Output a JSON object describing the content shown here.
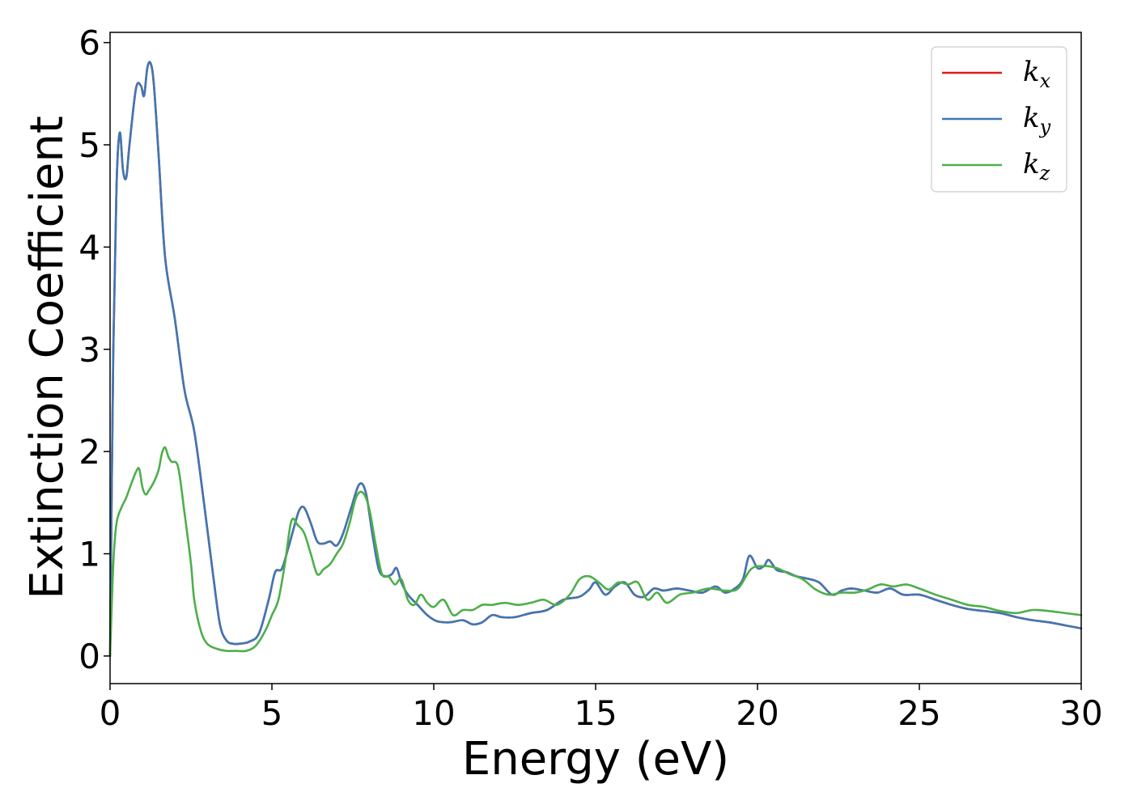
{
  "chart_data": {
    "type": "line",
    "title": "",
    "xlabel": "Energy (eV)",
    "ylabel": "Extinction Coefficient",
    "xlim": [
      0,
      30
    ],
    "ylim": [
      -0.27,
      6.1
    ],
    "xticks": [
      0,
      5,
      10,
      15,
      20,
      25,
      30
    ],
    "yticks": [
      0,
      1,
      2,
      3,
      4,
      5,
      6
    ],
    "grid": false,
    "legend_position": "top-right",
    "series": [
      {
        "name": "kx",
        "legend_base": "k",
        "legend_sub": "x",
        "color": "#e41a1c",
        "x": [
          0,
          0.1,
          0.2,
          0.3,
          0.4,
          0.5,
          0.6,
          0.8,
          0.95,
          1.05,
          1.15,
          1.25,
          1.35,
          1.5,
          1.7,
          2.0,
          2.3,
          2.6,
          2.9,
          3.2,
          3.4,
          3.6,
          3.8,
          4.0,
          4.3,
          4.6,
          4.9,
          5.1,
          5.3,
          5.5,
          5.7,
          5.85,
          6.0,
          6.2,
          6.4,
          6.6,
          6.8,
          7.0,
          7.2,
          7.45,
          7.7,
          7.9,
          8.1,
          8.3,
          8.5,
          8.7,
          8.85,
          9.0,
          9.2,
          9.5,
          9.8,
          10.1,
          10.5,
          10.9,
          11.2,
          11.5,
          11.8,
          12.1,
          12.5,
          13.0,
          13.5,
          14.0,
          14.5,
          14.8,
          15.0,
          15.3,
          15.6,
          15.9,
          16.2,
          16.5,
          16.8,
          17.1,
          17.5,
          17.9,
          18.3,
          18.7,
          19.0,
          19.3,
          19.55,
          19.75,
          20.0,
          20.2,
          20.35,
          20.6,
          20.9,
          21.2,
          21.5,
          21.9,
          22.3,
          22.6,
          22.9,
          23.3,
          23.7,
          24.1,
          24.5,
          25.0,
          25.5,
          26.0,
          26.5,
          27.0,
          27.5,
          28.0,
          28.5,
          29.0,
          29.5,
          30.0
        ],
        "y": [
          0.0,
          3.0,
          4.6,
          5.12,
          4.75,
          4.68,
          5.0,
          5.55,
          5.58,
          5.48,
          5.75,
          5.8,
          5.6,
          4.9,
          3.9,
          3.3,
          2.6,
          2.2,
          1.5,
          0.75,
          0.3,
          0.15,
          0.12,
          0.12,
          0.14,
          0.22,
          0.55,
          0.82,
          0.85,
          1.05,
          1.28,
          1.43,
          1.45,
          1.3,
          1.12,
          1.1,
          1.12,
          1.08,
          1.2,
          1.45,
          1.68,
          1.6,
          1.2,
          0.85,
          0.78,
          0.8,
          0.86,
          0.72,
          0.6,
          0.5,
          0.4,
          0.34,
          0.33,
          0.35,
          0.31,
          0.33,
          0.4,
          0.38,
          0.38,
          0.42,
          0.45,
          0.55,
          0.58,
          0.65,
          0.72,
          0.6,
          0.68,
          0.72,
          0.6,
          0.58,
          0.66,
          0.64,
          0.66,
          0.64,
          0.62,
          0.68,
          0.62,
          0.66,
          0.75,
          0.98,
          0.86,
          0.88,
          0.94,
          0.84,
          0.82,
          0.78,
          0.76,
          0.72,
          0.6,
          0.64,
          0.66,
          0.64,
          0.62,
          0.66,
          0.6,
          0.6,
          0.55,
          0.5,
          0.46,
          0.44,
          0.42,
          0.38,
          0.35,
          0.33,
          0.3,
          0.27
        ]
      },
      {
        "name": "ky",
        "legend_base": "k",
        "legend_sub": "y",
        "color": "#3f77b4",
        "x": [
          0,
          0.1,
          0.2,
          0.3,
          0.4,
          0.5,
          0.6,
          0.8,
          0.95,
          1.05,
          1.15,
          1.25,
          1.35,
          1.5,
          1.7,
          2.0,
          2.3,
          2.6,
          2.9,
          3.2,
          3.4,
          3.6,
          3.8,
          4.0,
          4.3,
          4.6,
          4.9,
          5.1,
          5.3,
          5.5,
          5.7,
          5.85,
          6.0,
          6.2,
          6.4,
          6.6,
          6.8,
          7.0,
          7.2,
          7.45,
          7.7,
          7.9,
          8.1,
          8.3,
          8.5,
          8.7,
          8.85,
          9.0,
          9.2,
          9.5,
          9.8,
          10.1,
          10.5,
          10.9,
          11.2,
          11.5,
          11.8,
          12.1,
          12.5,
          13.0,
          13.5,
          14.0,
          14.5,
          14.8,
          15.0,
          15.3,
          15.6,
          15.9,
          16.2,
          16.5,
          16.8,
          17.1,
          17.5,
          17.9,
          18.3,
          18.7,
          19.0,
          19.3,
          19.55,
          19.75,
          20.0,
          20.2,
          20.35,
          20.6,
          20.9,
          21.2,
          21.5,
          21.9,
          22.3,
          22.6,
          22.9,
          23.3,
          23.7,
          24.1,
          24.5,
          25.0,
          25.5,
          26.0,
          26.5,
          27.0,
          27.5,
          28.0,
          28.5,
          29.0,
          29.5,
          30.0
        ],
        "y": [
          0.0,
          3.0,
          4.6,
          5.12,
          4.75,
          4.68,
          5.0,
          5.55,
          5.58,
          5.48,
          5.75,
          5.8,
          5.6,
          4.9,
          3.9,
          3.3,
          2.6,
          2.2,
          1.5,
          0.75,
          0.3,
          0.15,
          0.12,
          0.12,
          0.14,
          0.22,
          0.55,
          0.82,
          0.85,
          1.05,
          1.28,
          1.43,
          1.45,
          1.3,
          1.12,
          1.1,
          1.12,
          1.08,
          1.2,
          1.45,
          1.68,
          1.6,
          1.2,
          0.85,
          0.78,
          0.8,
          0.86,
          0.72,
          0.6,
          0.5,
          0.4,
          0.34,
          0.33,
          0.35,
          0.31,
          0.33,
          0.4,
          0.38,
          0.38,
          0.42,
          0.45,
          0.55,
          0.58,
          0.65,
          0.72,
          0.6,
          0.68,
          0.72,
          0.6,
          0.58,
          0.66,
          0.64,
          0.66,
          0.64,
          0.62,
          0.68,
          0.62,
          0.66,
          0.75,
          0.98,
          0.86,
          0.88,
          0.94,
          0.84,
          0.82,
          0.78,
          0.76,
          0.72,
          0.6,
          0.64,
          0.66,
          0.64,
          0.62,
          0.66,
          0.6,
          0.6,
          0.55,
          0.5,
          0.46,
          0.44,
          0.42,
          0.38,
          0.35,
          0.33,
          0.3,
          0.27
        ]
      },
      {
        "name": "kz",
        "legend_base": "k",
        "legend_sub": "z",
        "color": "#4daf4a",
        "x": [
          0,
          0.1,
          0.2,
          0.35,
          0.5,
          0.65,
          0.8,
          0.9,
          1.0,
          1.1,
          1.2,
          1.35,
          1.5,
          1.6,
          1.7,
          1.8,
          1.9,
          2.1,
          2.3,
          2.5,
          2.6,
          2.8,
          3.0,
          3.3,
          3.6,
          3.9,
          4.2,
          4.5,
          4.8,
          5.0,
          5.2,
          5.4,
          5.6,
          5.8,
          6.0,
          6.2,
          6.4,
          6.6,
          6.8,
          7.0,
          7.2,
          7.4,
          7.6,
          7.8,
          8.0,
          8.2,
          8.4,
          8.6,
          8.8,
          9.0,
          9.2,
          9.4,
          9.6,
          9.8,
          10.0,
          10.3,
          10.6,
          10.9,
          11.2,
          11.5,
          11.8,
          12.2,
          12.6,
          13.0,
          13.4,
          13.8,
          14.2,
          14.5,
          14.8,
          15.1,
          15.4,
          15.7,
          16.0,
          16.3,
          16.6,
          16.9,
          17.2,
          17.6,
          18.0,
          18.5,
          19.0,
          19.4,
          19.8,
          20.2,
          20.6,
          21.0,
          21.4,
          21.8,
          22.2,
          22.6,
          23.0,
          23.4,
          23.8,
          24.2,
          24.6,
          25.0,
          25.5,
          26.0,
          26.5,
          27.0,
          27.5,
          28.0,
          28.5,
          29.0,
          29.5,
          30.0
        ],
        "y": [
          0.0,
          0.9,
          1.3,
          1.45,
          1.55,
          1.68,
          1.8,
          1.83,
          1.65,
          1.58,
          1.62,
          1.7,
          1.82,
          1.98,
          2.04,
          1.95,
          1.9,
          1.85,
          1.4,
          0.9,
          0.55,
          0.25,
          0.12,
          0.07,
          0.05,
          0.05,
          0.05,
          0.1,
          0.25,
          0.4,
          0.55,
          0.9,
          1.32,
          1.28,
          1.2,
          1.0,
          0.8,
          0.85,
          0.9,
          1.0,
          1.1,
          1.3,
          1.55,
          1.6,
          1.45,
          1.1,
          0.8,
          0.78,
          0.7,
          0.75,
          0.55,
          0.5,
          0.6,
          0.52,
          0.48,
          0.55,
          0.4,
          0.45,
          0.45,
          0.5,
          0.5,
          0.52,
          0.5,
          0.52,
          0.55,
          0.5,
          0.6,
          0.75,
          0.78,
          0.72,
          0.65,
          0.72,
          0.7,
          0.72,
          0.55,
          0.62,
          0.52,
          0.6,
          0.62,
          0.66,
          0.64,
          0.66,
          0.85,
          0.88,
          0.86,
          0.8,
          0.75,
          0.65,
          0.6,
          0.62,
          0.62,
          0.65,
          0.7,
          0.68,
          0.7,
          0.66,
          0.6,
          0.55,
          0.5,
          0.48,
          0.44,
          0.42,
          0.45,
          0.44,
          0.42,
          0.4
        ]
      }
    ]
  }
}
